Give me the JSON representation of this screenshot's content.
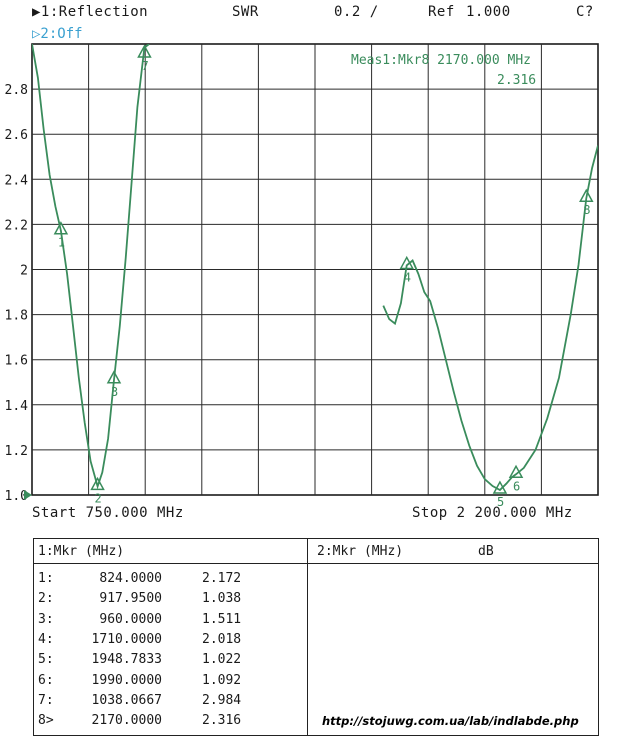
{
  "header": {
    "channel1": "▶1:Reflection",
    "format": "SWR",
    "scale": "0.2 /",
    "ref_label": "Ref",
    "ref_value": "1.000",
    "status": "C?",
    "channel2": "▷2:Off"
  },
  "measure": {
    "line1": "Meas1:Mkr8 2170.000 MHz",
    "line2": "2.316"
  },
  "sweep": {
    "start_label": "Start 750.000 MHz",
    "stop_label": "Stop 2 200.000 MHz"
  },
  "chart_data": {
    "type": "line",
    "title": "",
    "xlabel": "",
    "ylabel": "",
    "xlim": [
      750,
      2200
    ],
    "ylim": [
      1.0,
      3.0
    ],
    "y_ticks": [
      "1.0",
      "1.2",
      "1.4",
      "1.6",
      "1.8",
      "2",
      "2.2",
      "2.4",
      "2.6",
      "2.8"
    ],
    "y_tick_values": [
      1.0,
      1.2,
      1.4,
      1.6,
      1.8,
      2.0,
      2.2,
      2.4,
      2.6,
      2.8
    ],
    "grid": true,
    "trace_color": "#3a8c5c",
    "series": [
      {
        "x": [
          750,
          765,
          780,
          795,
          810,
          824,
          840,
          855,
          870,
          885,
          900,
          917.95,
          930,
          945,
          960,
          975,
          990,
          1005,
          1020,
          1038.07,
          1050,
          1650,
          1665,
          1680,
          1695,
          1710,
          1725,
          1740,
          1755,
          1770,
          1790,
          1810,
          1830,
          1850,
          1870,
          1890,
          1910,
          1930,
          1948.78,
          1965,
          1980,
          1990,
          2010,
          2040,
          2070,
          2100,
          2130,
          2150,
          2170,
          2185,
          2200
        ],
        "y": [
          3.0,
          2.85,
          2.62,
          2.42,
          2.28,
          2.172,
          1.98,
          1.75,
          1.52,
          1.32,
          1.15,
          1.038,
          1.1,
          1.25,
          1.511,
          1.75,
          2.05,
          2.38,
          2.72,
          2.984,
          3.0,
          1.84,
          1.78,
          1.76,
          1.85,
          2.018,
          2.04,
          1.98,
          1.9,
          1.86,
          1.74,
          1.6,
          1.46,
          1.33,
          1.22,
          1.13,
          1.07,
          1.04,
          1.022,
          1.05,
          1.08,
          1.092,
          1.12,
          1.2,
          1.34,
          1.52,
          1.8,
          2.02,
          2.316,
          2.45,
          2.55
        ]
      }
    ],
    "markers": [
      {
        "id": "1",
        "x": 824.0,
        "y": 2.172
      },
      {
        "id": "2",
        "x": 917.95,
        "y": 1.038
      },
      {
        "id": "3",
        "x": 960.0,
        "y": 1.511
      },
      {
        "id": "4",
        "x": 1710.0,
        "y": 2.018
      },
      {
        "id": "5",
        "x": 1948.7833,
        "y": 1.022
      },
      {
        "id": "6",
        "x": 1990.0,
        "y": 1.092
      },
      {
        "id": "7",
        "x": 1038.0667,
        "y": 2.984
      },
      {
        "id": "8",
        "x": 2170.0,
        "y": 2.316
      }
    ]
  },
  "marker_table": {
    "title1": "1:Mkr (MHz)",
    "title2": "2:Mkr (MHz)",
    "title2_unit": "dB",
    "rows": [
      {
        "label": "1:",
        "freq": "824.0000",
        "value": "2.172"
      },
      {
        "label": "2:",
        "freq": "917.9500",
        "value": "1.038"
      },
      {
        "label": "3:",
        "freq": "960.0000",
        "value": "1.511"
      },
      {
        "label": "4:",
        "freq": "1710.0000",
        "value": "2.018"
      },
      {
        "label": "5:",
        "freq": "1948.7833",
        "value": "1.022"
      },
      {
        "label": "6:",
        "freq": "1990.0000",
        "value": "1.092"
      },
      {
        "label": "7:",
        "freq": "1038.0667",
        "value": "2.984"
      },
      {
        "label": "8>",
        "freq": "2170.0000",
        "value": "2.316"
      }
    ]
  },
  "url": "http://stojuwg.com.ua/lab/indlabde.php"
}
